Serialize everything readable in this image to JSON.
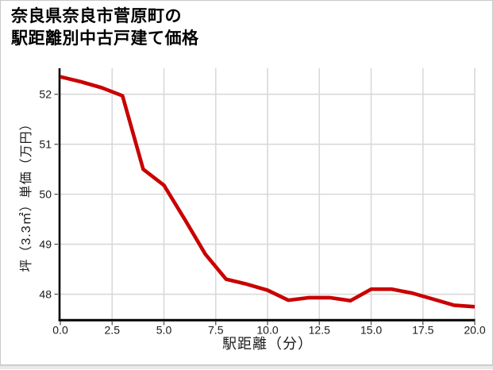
{
  "chart_data": {
    "type": "line",
    "title": "奈良県奈良市菅原町の\n駅距離別中古戸建て価格",
    "xlabel": "駅距離（分）",
    "ylabel": "坪（3.3㎡）単価（万円）",
    "x": [
      0,
      1,
      2,
      3,
      4,
      5,
      6,
      7,
      8,
      9,
      10,
      11,
      12,
      13,
      14,
      15,
      16,
      17,
      18,
      19,
      20
    ],
    "values": [
      52.35,
      52.25,
      52.13,
      51.97,
      50.5,
      50.18,
      49.5,
      48.8,
      48.3,
      48.2,
      48.08,
      47.88,
      47.93,
      47.93,
      47.87,
      48.1,
      48.1,
      48.02,
      47.9,
      47.78,
      47.75
    ],
    "xticks": [
      0,
      2.5,
      5,
      7.5,
      10,
      12.5,
      15,
      17.5,
      20
    ],
    "xtick_labels": [
      "0.0",
      "2.5",
      "5.0",
      "7.5",
      "10.0",
      "12.5",
      "15.0",
      "17.5",
      "20.0"
    ],
    "yticks": [
      48,
      49,
      50,
      51,
      52
    ],
    "ytick_labels": [
      "48",
      "49",
      "50",
      "51",
      "52"
    ],
    "xlim": [
      0,
      20
    ],
    "ylim": [
      47.5,
      52.52
    ],
    "grid": true,
    "legend": "none",
    "line_color": "#c90000",
    "grid_color": "#d9d9d9",
    "axis_color": "#000000",
    "tick_color": "#555555",
    "tick_label_color": "#1a1a1a"
  }
}
